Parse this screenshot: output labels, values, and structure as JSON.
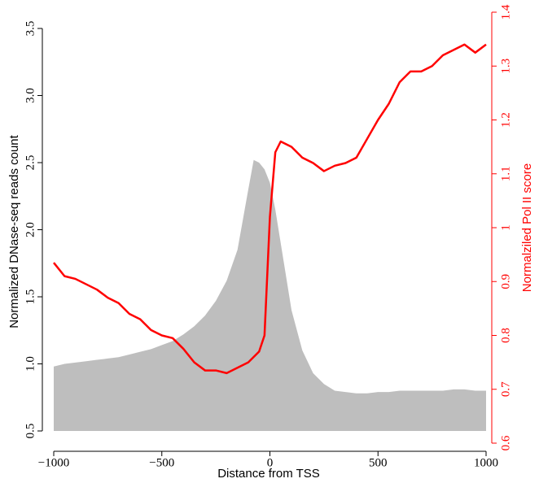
{
  "chart_data": {
    "type": "area-line",
    "xlabel": "Distance from TSS",
    "ylabel": "Normalized DNase-seq reads count",
    "y2label": "Normalziled Pol II score",
    "x": [
      -1000,
      -950,
      -900,
      -850,
      -800,
      -750,
      -700,
      -650,
      -600,
      -550,
      -500,
      -450,
      -400,
      -350,
      -300,
      -250,
      -200,
      -150,
      -100,
      -75,
      -50,
      -25,
      0,
      25,
      50,
      100,
      150,
      200,
      250,
      300,
      350,
      400,
      450,
      500,
      550,
      600,
      650,
      700,
      750,
      800,
      850,
      900,
      950,
      1000
    ],
    "series": [
      {
        "name": "DNase-seq",
        "color": "#bebebe",
        "axis": "y",
        "values": [
          0.98,
          1.0,
          1.01,
          1.02,
          1.03,
          1.04,
          1.05,
          1.07,
          1.09,
          1.11,
          1.14,
          1.17,
          1.22,
          1.28,
          1.36,
          1.47,
          1.62,
          1.85,
          2.3,
          2.52,
          2.5,
          2.45,
          2.35,
          2.15,
          1.9,
          1.4,
          1.1,
          0.93,
          0.85,
          0.8,
          0.79,
          0.78,
          0.78,
          0.79,
          0.79,
          0.8,
          0.8,
          0.8,
          0.8,
          0.8,
          0.81,
          0.81,
          0.8,
          0.8
        ]
      },
      {
        "name": "Pol II",
        "color": "#ff0000",
        "axis": "y2",
        "values": [
          0.935,
          0.91,
          0.905,
          0.895,
          0.885,
          0.87,
          0.86,
          0.84,
          0.83,
          0.81,
          0.8,
          0.795,
          0.775,
          0.75,
          0.735,
          0.735,
          0.73,
          0.74,
          0.75,
          0.76,
          0.77,
          0.8,
          1.02,
          1.14,
          1.16,
          1.15,
          1.13,
          1.12,
          1.105,
          1.115,
          1.12,
          1.13,
          1.165,
          1.2,
          1.23,
          1.27,
          1.29,
          1.29,
          1.3,
          1.32,
          1.33,
          1.34,
          1.325,
          1.34
        ]
      }
    ],
    "xlim": [
      -1000,
      1000
    ],
    "xticks": [
      {
        "value": -1000,
        "label": "−1000"
      },
      {
        "value": -500,
        "label": "−500"
      },
      0,
      500,
      1000
    ],
    "ylim": [
      0.5,
      3.5
    ],
    "yticks": [
      0.5,
      {
        "value": 1,
        "label": "1.0"
      },
      1.5,
      {
        "value": 2,
        "label": "2.0"
      },
      2.5,
      {
        "value": 3,
        "label": "3.0"
      },
      3.5
    ],
    "y2lim": [
      0.6,
      1.4
    ],
    "y2ticks": [
      0.6,
      0.7,
      0.8,
      0.9,
      1,
      1.1,
      1.2,
      1.3,
      1.4
    ],
    "y2color": "#ff0000"
  }
}
